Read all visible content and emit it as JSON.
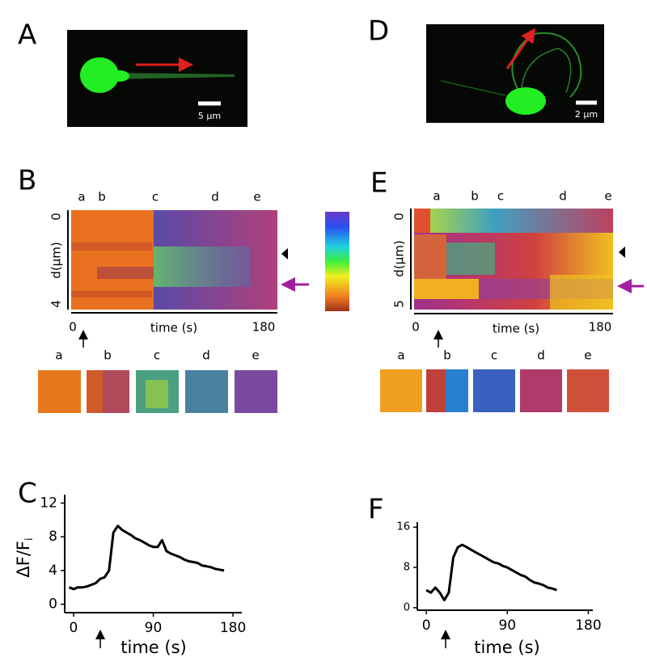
{
  "panels": {
    "A": {
      "label": "A",
      "scale_bar": "5 µm"
    },
    "B": {
      "label": "B",
      "time_points": [
        "a",
        "b",
        "c",
        "d",
        "e"
      ],
      "ylabel": "d(µm)",
      "yticks": [
        "0",
        "4"
      ],
      "xlabel": "time (s)",
      "xticks": [
        "0",
        "180"
      ],
      "thumbnails": [
        "a",
        "b",
        "c",
        "d",
        "e"
      ]
    },
    "C": {
      "label": "C"
    },
    "D": {
      "label": "D",
      "scale_bar": "2 µm"
    },
    "E": {
      "label": "E",
      "time_points": [
        "a",
        "b",
        "c",
        "d",
        "e"
      ],
      "ylabel": "d(µm)",
      "yticks": [
        "0",
        "5"
      ],
      "xlabel": "time (s)",
      "xticks": [
        "0",
        "180"
      ],
      "thumbnails": [
        "a",
        "b",
        "c",
        "d",
        "e"
      ]
    },
    "F": {
      "label": "F"
    }
  },
  "chart_data": [
    {
      "type": "line",
      "ylabel": "ΔF/F",
      "ylabel_sub": "i",
      "xlabel": "time (s)",
      "color": "#000000",
      "x": [
        -5,
        0,
        5,
        10,
        15,
        20,
        25,
        30,
        35,
        40,
        45,
        50,
        55,
        60,
        65,
        70,
        75,
        80,
        85,
        90,
        95,
        100,
        105,
        110,
        115,
        120,
        125,
        130,
        135,
        140,
        145,
        150,
        155,
        160,
        165,
        170
      ],
      "values": [
        2,
        1.8,
        2,
        2,
        2.1,
        2.3,
        2.5,
        3,
        3.2,
        4,
        8.5,
        9.3,
        8.8,
        8.5,
        8.2,
        7.8,
        7.6,
        7.3,
        7,
        6.8,
        6.8,
        7.6,
        6.3,
        6,
        5.8,
        5.6,
        5.3,
        5.1,
        5,
        4.9,
        4.6,
        4.5,
        4.4,
        4.2,
        4.1,
        4
      ],
      "xlim": [
        -10,
        190
      ],
      "ylim": [
        -1,
        13
      ],
      "xticks": [
        0,
        90,
        180
      ],
      "yticks": [
        0,
        4,
        8,
        12
      ]
    },
    {
      "type": "line",
      "xlabel": "time (s)",
      "color": "#000000",
      "x": [
        0,
        5,
        10,
        15,
        20,
        25,
        30,
        35,
        40,
        45,
        50,
        55,
        60,
        65,
        70,
        75,
        80,
        85,
        90,
        95,
        100,
        105,
        110,
        115,
        120,
        125,
        130,
        135,
        140,
        145
      ],
      "values": [
        3.5,
        3,
        4,
        3,
        1.5,
        3,
        10,
        12,
        12.5,
        12,
        11.5,
        11,
        10.5,
        10,
        9.5,
        9,
        8.8,
        8.3,
        8,
        7.5,
        7,
        6.5,
        6.2,
        5.5,
        5,
        4.8,
        4.5,
        4,
        3.8,
        3.5
      ],
      "xlim": [
        -10,
        185
      ],
      "ylim": [
        -0.5,
        17
      ],
      "xticks": [
        0,
        90,
        180
      ],
      "yticks": [
        0,
        8,
        16
      ]
    }
  ]
}
